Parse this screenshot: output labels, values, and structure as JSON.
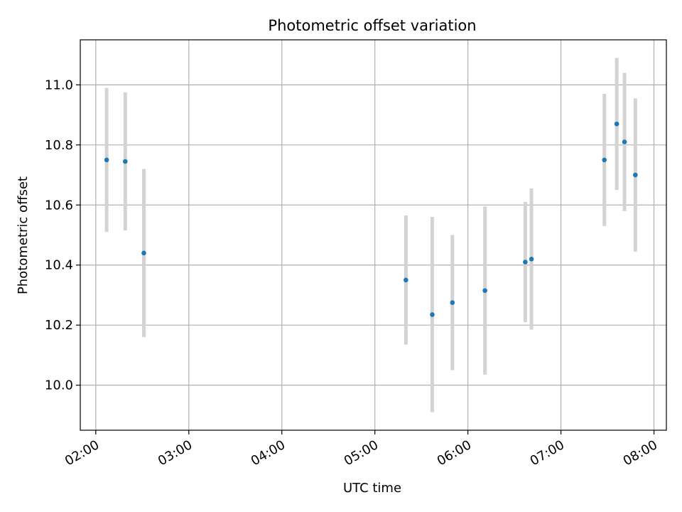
{
  "chart_data": {
    "type": "scatter",
    "title": "Photometric offset variation",
    "xlabel": "UTC time",
    "ylabel": "Photometric offset",
    "x_ticks": [
      "02:00",
      "03:00",
      "04:00",
      "05:00",
      "06:00",
      "07:00",
      "08:00"
    ],
    "y_ticks": [
      "10.0",
      "10.2",
      "10.4",
      "10.6",
      "10.8",
      "11.0"
    ],
    "xlim": [
      "01:50",
      "08:08"
    ],
    "ylim": [
      9.85,
      11.15
    ],
    "grid": true,
    "marker_color": "#1f77b4",
    "errorbar_color": "#d3d3d3",
    "points": [
      {
        "x": "02:07",
        "y": 10.75,
        "yerr": 0.24
      },
      {
        "x": "02:19",
        "y": 10.745,
        "yerr": 0.23
      },
      {
        "x": "02:31",
        "y": 10.44,
        "yerr": 0.28
      },
      {
        "x": "05:20",
        "y": 10.35,
        "yerr": 0.215
      },
      {
        "x": "05:37",
        "y": 10.235,
        "yerr": 0.325
      },
      {
        "x": "05:50",
        "y": 10.275,
        "yerr": 0.225
      },
      {
        "x": "06:11",
        "y": 10.315,
        "yerr": 0.28
      },
      {
        "x": "06:37",
        "y": 10.41,
        "yerr": 0.2
      },
      {
        "x": "06:41",
        "y": 10.42,
        "yerr": 0.235
      },
      {
        "x": "07:28",
        "y": 10.75,
        "yerr": 0.22
      },
      {
        "x": "07:36",
        "y": 10.87,
        "yerr": 0.22
      },
      {
        "x": "07:41",
        "y": 10.81,
        "yerr": 0.23
      },
      {
        "x": "07:48",
        "y": 10.7,
        "yerr": 0.255
      }
    ]
  }
}
